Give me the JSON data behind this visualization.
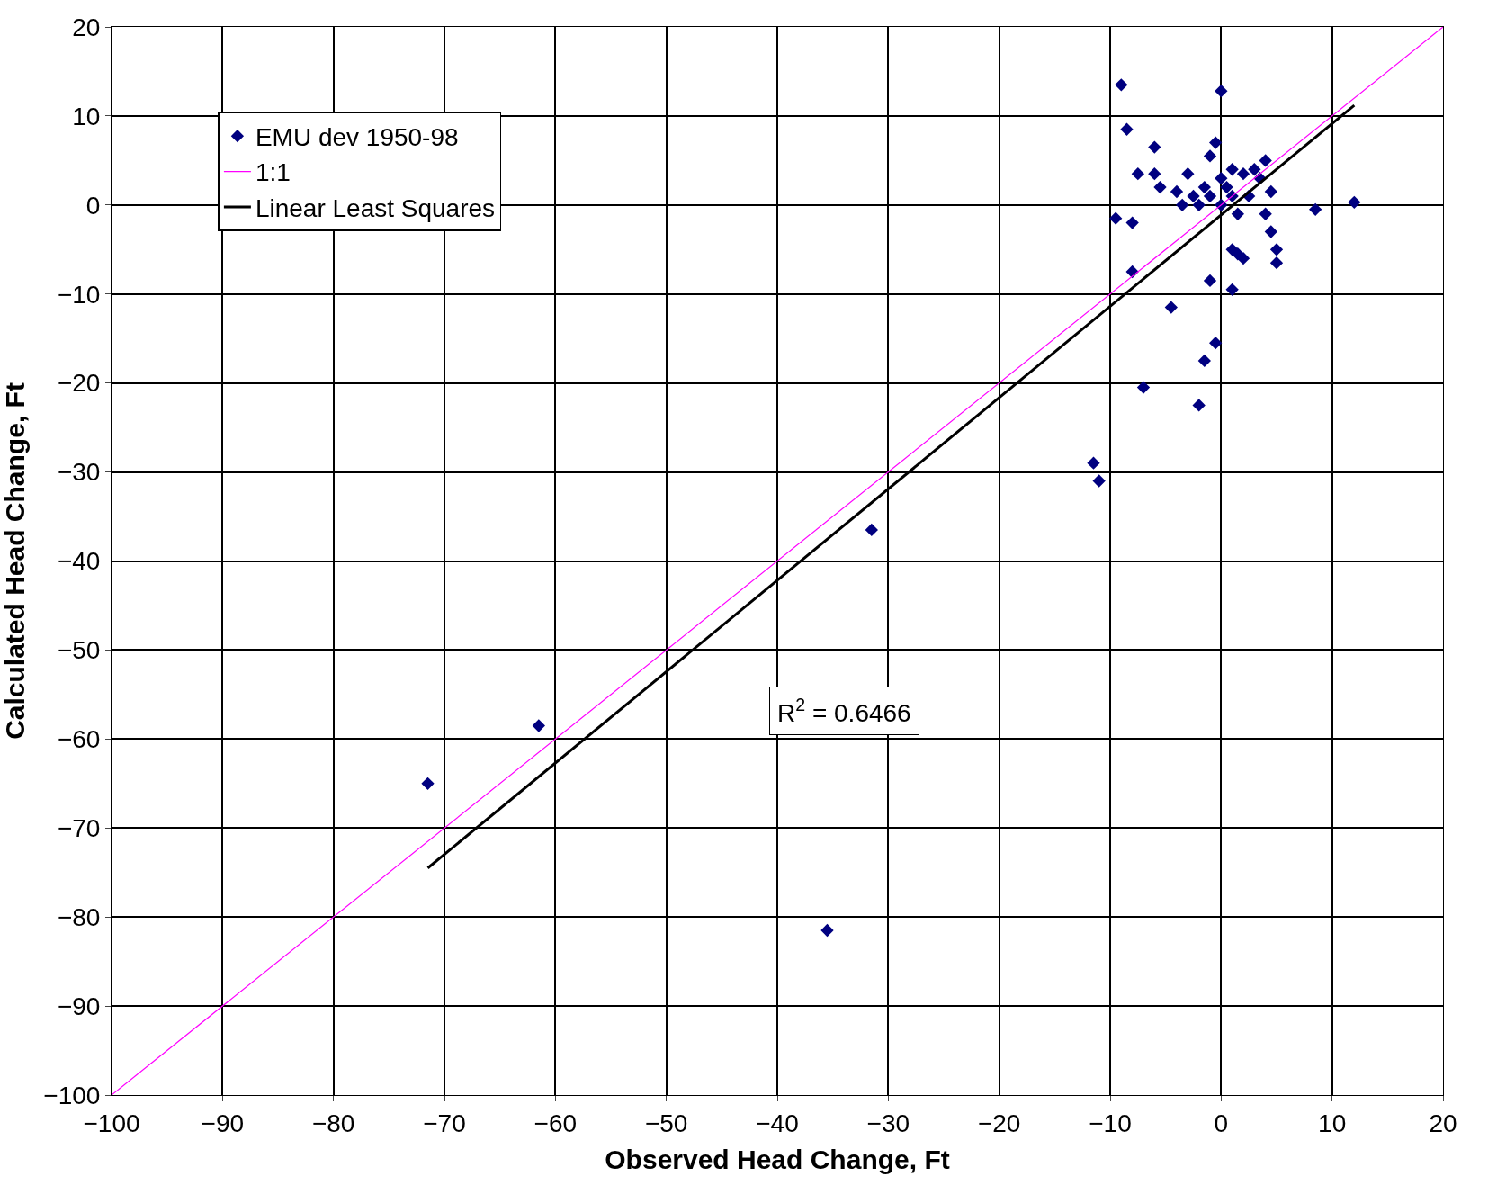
{
  "chart_data": {
    "type": "scatter",
    "xlabel": "Observed Head Change, Ft",
    "ylabel": "Calculated Head Change, Ft",
    "series": [
      {
        "name": "EMU dev 1950-98",
        "color": "#000080",
        "marker": "diamond",
        "x": [
          -9,
          0,
          -8.5,
          -6,
          -0.5,
          -1,
          -7.5,
          -6,
          -3,
          4,
          -5.5,
          -4,
          -3.5,
          -2.5,
          -2,
          -1.5,
          -1,
          0,
          0.5,
          1,
          2,
          2.5,
          3,
          3.5,
          1.5,
          4,
          4.5,
          4.5,
          5,
          5,
          -9.5,
          -8,
          1,
          2,
          1.5,
          -8,
          -1,
          1,
          -4.5,
          -0.5,
          -1.5,
          -7,
          -2,
          8.5,
          12,
          0,
          1,
          -11.5,
          -11,
          -31.5,
          -61.5,
          -71.5,
          -35.5
        ],
        "values": [
          13.5,
          12.8,
          8.5,
          6.5,
          7,
          5.5,
          3.5,
          3.5,
          3.5,
          5,
          2,
          1.5,
          0,
          1,
          0,
          2,
          1,
          0,
          2,
          4,
          3.5,
          1,
          4,
          3,
          -1,
          -1,
          1.5,
          -3,
          -5,
          -6.5,
          -1.5,
          -2,
          -5,
          -6,
          -5.5,
          -7.5,
          -8.5,
          -9.5,
          -11.5,
          -15.5,
          -17.5,
          -20.5,
          -22.5,
          -0.5,
          0.3,
          3,
          1,
          -29,
          -31,
          -36.5,
          -58.5,
          -65,
          -81.5
        ]
      },
      {
        "name": "1:1",
        "type": "line",
        "color": "#ff00ff",
        "x": [
          -100,
          20
        ],
        "values": [
          -100,
          20
        ]
      },
      {
        "name": "Linear Least Squares",
        "type": "line",
        "color": "#000000",
        "x": [
          -71.5,
          12
        ],
        "values": [
          -74.5,
          11.2
        ]
      }
    ],
    "xlim": [
      -100,
      20
    ],
    "xticks": [
      -100,
      -90,
      -80,
      -70,
      -60,
      -50,
      -40,
      -30,
      -20,
      -10,
      0,
      10,
      20
    ],
    "ylim": [
      -100,
      20
    ],
    "yticks": [
      -100,
      -90,
      -80,
      -70,
      -60,
      -50,
      -40,
      -30,
      -20,
      -10,
      0,
      10,
      20
    ],
    "grid": true,
    "legend": "top left",
    "annotations": [
      "R$^{2}$ = 0.6466"
    ]
  }
}
